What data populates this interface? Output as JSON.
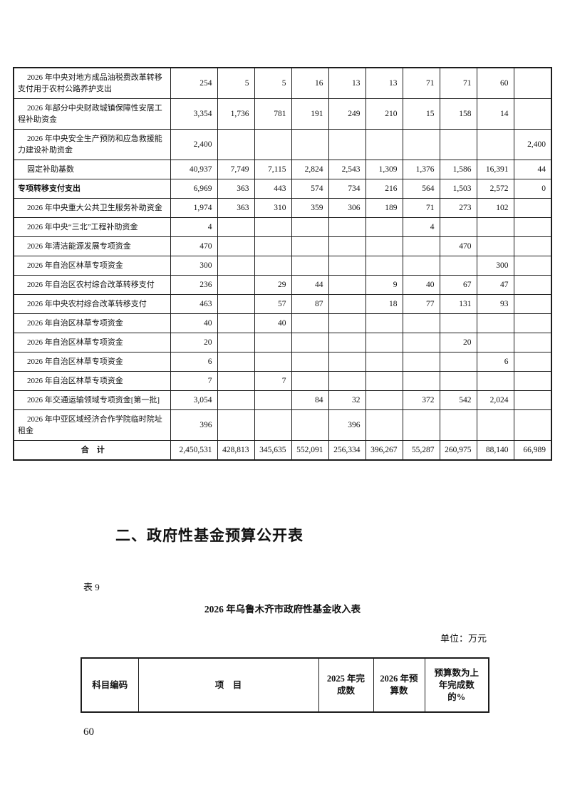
{
  "page": {
    "section_heading": "二、政府性基金预算公开表",
    "table_label": "表 9",
    "table_title": "2026 年乌鲁木齐市政府性基金收入表",
    "unit_note": "单位：万元",
    "page_number": "60"
  },
  "expenditure_table": {
    "rows": [
      {
        "style": "item",
        "label": "2026 年中央对地方成品油税费改革转移支付用于农村公路养护支出",
        "values": [
          "254",
          "5",
          "5",
          "16",
          "13",
          "13",
          "71",
          "71",
          "60",
          ""
        ]
      },
      {
        "style": "item",
        "label": "2026 年部分中央财政城镇保障性安居工程补助资金",
        "values": [
          "3,354",
          "1,736",
          "781",
          "191",
          "249",
          "210",
          "15",
          "158",
          "14",
          ""
        ]
      },
      {
        "style": "item",
        "label": "2026 年中央安全生产预防和应急救援能力建设补助资金",
        "values": [
          "2,400",
          "",
          "",
          "",
          "",
          "",
          "",
          "",
          "",
          "2,400"
        ]
      },
      {
        "style": "item",
        "label": "固定补助基数",
        "values": [
          "40,937",
          "7,749",
          "7,115",
          "2,824",
          "2,543",
          "1,309",
          "1,376",
          "1,586",
          "16,391",
          "44"
        ]
      },
      {
        "style": "section",
        "label": "专项转移支付支出",
        "values": [
          "6,969",
          "363",
          "443",
          "574",
          "734",
          "216",
          "564",
          "1,503",
          "2,572",
          "0"
        ]
      },
      {
        "style": "item",
        "label": "2026 年中央重大公共卫生服务补助资金",
        "values": [
          "1,974",
          "363",
          "310",
          "359",
          "306",
          "189",
          "71",
          "273",
          "102",
          ""
        ]
      },
      {
        "style": "item",
        "label": "2026 年中央“三北”工程补助资金",
        "values": [
          "4",
          "",
          "",
          "",
          "",
          "",
          "4",
          "",
          "",
          ""
        ]
      },
      {
        "style": "item",
        "label": "2026 年清洁能源发展专项资金",
        "values": [
          "470",
          "",
          "",
          "",
          "",
          "",
          "",
          "470",
          "",
          ""
        ]
      },
      {
        "style": "item",
        "label": "2026 年自治区林草专项资金",
        "values": [
          "300",
          "",
          "",
          "",
          "",
          "",
          "",
          "",
          "300",
          ""
        ]
      },
      {
        "style": "item",
        "label": "2026 年自治区农村综合改革转移支付",
        "values": [
          "236",
          "",
          "29",
          "44",
          "",
          "9",
          "40",
          "67",
          "47",
          ""
        ]
      },
      {
        "style": "item",
        "label": "2026 年中央农村综合改革转移支付",
        "values": [
          "463",
          "",
          "57",
          "87",
          "",
          "18",
          "77",
          "131",
          "93",
          ""
        ]
      },
      {
        "style": "item",
        "label": "2026 年自治区林草专项资金",
        "values": [
          "40",
          "",
          "40",
          "",
          "",
          "",
          "",
          "",
          "",
          ""
        ]
      },
      {
        "style": "item",
        "label": "2026 年自治区林草专项资金",
        "values": [
          "20",
          "",
          "",
          "",
          "",
          "",
          "",
          "20",
          "",
          ""
        ]
      },
      {
        "style": "item",
        "label": "2026 年自治区林草专项资金",
        "values": [
          "6",
          "",
          "",
          "",
          "",
          "",
          "",
          "",
          "6",
          ""
        ]
      },
      {
        "style": "item",
        "label": "2026 年自治区林草专项资金",
        "values": [
          "7",
          "",
          "7",
          "",
          "",
          "",
          "",
          "",
          "",
          ""
        ]
      },
      {
        "style": "item",
        "label": "2026 年交通运输领域专项资金[第一批]",
        "values": [
          "3,054",
          "",
          "",
          "84",
          "32",
          "",
          "372",
          "542",
          "2,024",
          ""
        ]
      },
      {
        "style": "item",
        "label": "2026 年中亚区域经济合作学院临时院址租金",
        "values": [
          "396",
          "",
          "",
          "",
          "396",
          "",
          "",
          "",
          "",
          ""
        ]
      },
      {
        "style": "total",
        "label": "合　计",
        "values": [
          "2,450,531",
          "428,813",
          "345,635",
          "552,091",
          "256,334",
          "396,267",
          "55,287",
          "260,975",
          "88,140",
          "66,989"
        ]
      }
    ]
  },
  "income_table": {
    "headers": [
      "科目编码",
      "项　目",
      "2025 年完\n成数",
      "2026 年预\n算数",
      "预算数为上\n年完成数\n的%"
    ]
  }
}
